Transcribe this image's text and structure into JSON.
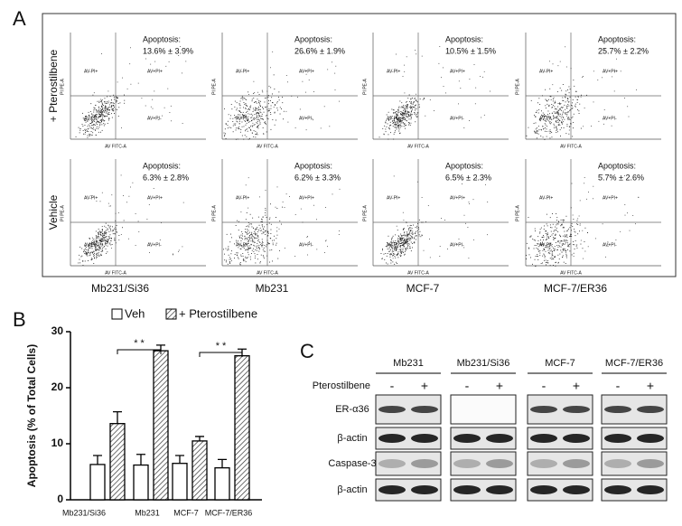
{
  "panel_a": {
    "label": "A",
    "rows": [
      {
        "label": "+ Pterostilbene",
        "plots": [
          "13.6% ± 3.9%",
          "26.6% ± 1.9%",
          "10.5% ± 1.5%",
          "25.7% ± 2.2%"
        ]
      },
      {
        "label": "Vehicle",
        "plots": [
          "6.3% ± 2.8%",
          "6.2% ± 3.3%",
          "6.5% ± 2.3%",
          "5.7% ± 2.6%"
        ]
      }
    ],
    "columns": [
      "Mb231/Si36",
      "Mb231",
      "MCF-7",
      "MCF-7/ER36"
    ],
    "apoptosis_label": "Apoptosis:",
    "quadrants": [
      "AV-PI+",
      "AV+PI+",
      "AV-PI-",
      "AV+PI-"
    ],
    "x_axis": "AV FITC-A",
    "y_axis": "PI PE-A"
  },
  "chart_data": {
    "type": "bar",
    "label": "B",
    "ylabel": "Apoptosis (% of Total Cells)",
    "categories": [
      "Mb231/Si36",
      "Mb231",
      "MCF-7",
      "MCF-7/ER36"
    ],
    "series": [
      {
        "name": "Veh",
        "color": "#ffffff",
        "hatch": false,
        "values": [
          6.3,
          6.2,
          6.5,
          5.7
        ],
        "errors": [
          1.6,
          1.9,
          1.4,
          1.5
        ]
      },
      {
        "name": "+ Pterostilbene",
        "color": "#ffffff",
        "hatch": true,
        "values": [
          13.6,
          26.6,
          10.5,
          25.7
        ],
        "errors": [
          2.1,
          1.0,
          0.8,
          1.2
        ]
      }
    ],
    "significance": [
      "* *",
      "* *"
    ],
    "ylim": [
      0,
      30
    ],
    "yticks": [
      0,
      10,
      20,
      30
    ]
  },
  "panel_c": {
    "label": "C",
    "treatment": "Pterostilbene",
    "groups": [
      "Mb231",
      "Mb231/Si36",
      "MCF-7",
      "MCF-7/ER36"
    ],
    "signs": [
      "-",
      "+"
    ],
    "rows": [
      "ER-α36",
      "β-actin",
      "Caspase-3",
      "β-actin"
    ]
  }
}
